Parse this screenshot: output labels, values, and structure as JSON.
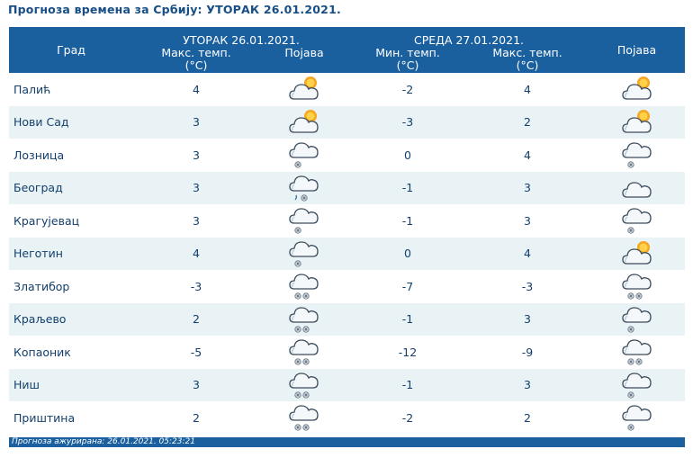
{
  "page": {
    "title": "Прогноза времена за Србију: УТОРАК  26.01.2021."
  },
  "header": {
    "city": "Град",
    "day1_title": "УТОРАК  26.01.2021.",
    "day2_title": "СРЕДА  27.01.2021.",
    "max_temp_line1": "Макс. темп.",
    "min_temp_line1": "Мин. темп.",
    "unit": "(°C)",
    "phenomenon": "Појава"
  },
  "rows": [
    {
      "city": "Палић",
      "d1_max": "4",
      "d1_icon": "partly-sunny-cloud-icon",
      "d2_min": "-2",
      "d2_max": "4",
      "d2_icon": "partly-sunny-cloud-icon"
    },
    {
      "city": "Нови Сад",
      "d1_max": "3",
      "d1_icon": "partly-sunny-cloud-icon",
      "d2_min": "-3",
      "d2_max": "2",
      "d2_icon": "partly-sunny-cloud-icon"
    },
    {
      "city": "Лозница",
      "d1_max": "3",
      "d1_icon": "cloud-light-snow-icon",
      "d2_min": "0",
      "d2_max": "4",
      "d2_icon": "cloud-light-snow-icon"
    },
    {
      "city": "Београд",
      "d1_max": "3",
      "d1_icon": "cloud-sleet-icon",
      "d2_min": "-1",
      "d2_max": "3",
      "d2_icon": "cloud-icon"
    },
    {
      "city": "Крагујевац",
      "d1_max": "3",
      "d1_icon": "cloud-light-snow-icon",
      "d2_min": "-1",
      "d2_max": "3",
      "d2_icon": "cloud-light-snow-icon"
    },
    {
      "city": "Неготин",
      "d1_max": "4",
      "d1_icon": "cloud-light-snow-icon",
      "d2_min": "0",
      "d2_max": "4",
      "d2_icon": "partly-sunny-cloud-icon"
    },
    {
      "city": "Златибор",
      "d1_max": "-3",
      "d1_icon": "cloud-snow-icon",
      "d2_min": "-7",
      "d2_max": "-3",
      "d2_icon": "cloud-snow-icon"
    },
    {
      "city": "Краљево",
      "d1_max": "2",
      "d1_icon": "cloud-snow-icon",
      "d2_min": "-1",
      "d2_max": "3",
      "d2_icon": "cloud-light-snow-icon"
    },
    {
      "city": "Копаоник",
      "d1_max": "-5",
      "d1_icon": "cloud-snow-icon",
      "d2_min": "-12",
      "d2_max": "-9",
      "d2_icon": "cloud-snow-icon"
    },
    {
      "city": "Ниш",
      "d1_max": "3",
      "d1_icon": "cloud-snow-icon",
      "d2_min": "-1",
      "d2_max": "3",
      "d2_icon": "cloud-light-snow-icon"
    },
    {
      "city": "Приштина",
      "d1_max": "2",
      "d1_icon": "cloud-snow-icon",
      "d2_min": "-2",
      "d2_max": "2",
      "d2_icon": "cloud-light-snow-icon"
    }
  ],
  "footer": {
    "updated": "Прогноза ажурирана:  26.01.2021. 05:23:21"
  },
  "colors": {
    "header_bg": "#1a5f9e",
    "row_alt_bg": "#e9f3f6",
    "text": "#143f6c"
  }
}
